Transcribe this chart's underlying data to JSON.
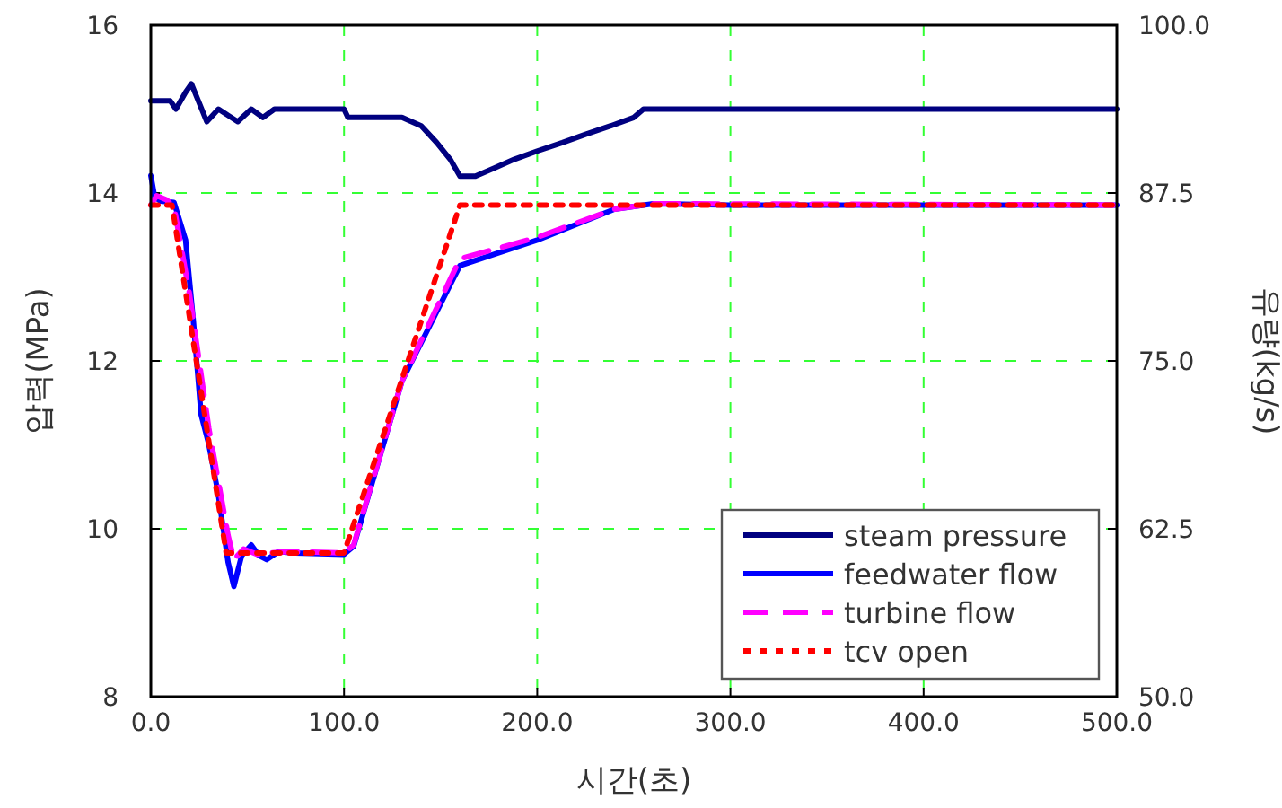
{
  "chart_data": {
    "type": "line",
    "xlabel": "시간(초)",
    "ylabel": "압력(MPa)",
    "y2label": "유량(kg/s)",
    "xlim": [
      0,
      500
    ],
    "xticks": [
      {
        "value": 0,
        "label": "0.0"
      },
      {
        "value": 100,
        "label": "100.0"
      },
      {
        "value": 200,
        "label": "200.0"
      },
      {
        "value": 300,
        "label": "300.0"
      },
      {
        "value": 400,
        "label": "400.0"
      },
      {
        "value": 500,
        "label": "500.0"
      }
    ],
    "ylim": [
      8,
      16
    ],
    "yticks": [
      8,
      10,
      12,
      14,
      16
    ],
    "y2lim": [
      50,
      100
    ],
    "y2ticks": [
      {
        "value": 50,
        "label": "50.0"
      },
      {
        "value": 62.5,
        "label": "62.5"
      },
      {
        "value": 75,
        "label": "75.0"
      },
      {
        "value": 87.5,
        "label": "87.5"
      },
      {
        "value": 100,
        "label": "100.0"
      }
    ],
    "grid": true,
    "legend": "bottom right",
    "series": [
      {
        "name": "steam pressure",
        "color": "#000080",
        "line_style": "solid",
        "x": [
          0,
          10,
          13,
          18,
          21,
          29,
          35,
          45,
          52,
          58,
          64,
          100,
          102,
          130,
          140,
          148,
          155,
          160,
          168,
          178,
          188,
          200,
          213,
          225,
          238,
          250,
          255,
          500
        ],
        "values": [
          15.1,
          15.1,
          15.0,
          15.2,
          15.3,
          14.85,
          15.0,
          14.85,
          15.0,
          14.9,
          15.0,
          15.0,
          14.9,
          14.9,
          14.8,
          14.6,
          14.4,
          14.2,
          14.2,
          14.3,
          14.4,
          14.5,
          14.6,
          14.7,
          14.8,
          14.9,
          15.0,
          15.0
        ]
      },
      {
        "name": "feedwater flow",
        "color": "#0000ff",
        "axis": "y2",
        "line_style": "solid",
        "x": [
          0,
          2,
          5,
          12,
          18,
          22,
          26,
          30,
          35,
          40,
          43,
          47,
          52,
          56,
          60,
          66,
          75,
          100,
          105,
          130,
          160,
          200,
          240,
          260,
          300,
          500
        ],
        "values": [
          88.8,
          87.2,
          86.9,
          86.8,
          84,
          78,
          71,
          68.8,
          65,
          60,
          58.2,
          60.5,
          61.3,
          60.5,
          60.2,
          60.8,
          60.7,
          60.6,
          61.2,
          73.5,
          82.1,
          84,
          86.3,
          86.7,
          86.6,
          86.6
        ]
      },
      {
        "name": "turbine flow",
        "color": "#ff00ff",
        "axis": "y2",
        "line_style": "dashed",
        "x": [
          0,
          3,
          8,
          12,
          20,
          30,
          40,
          43,
          48,
          55,
          70,
          100,
          105,
          130,
          160,
          200,
          240,
          260,
          500
        ],
        "values": [
          86.6,
          87.3,
          87,
          86.5,
          80,
          70,
          62,
          60.2,
          61,
          60.6,
          60.8,
          60.7,
          61.3,
          73.5,
          82.6,
          84.2,
          86.3,
          86.7,
          86.6
        ]
      },
      {
        "name": "tcv open",
        "color": "#ff0000",
        "axis": "y2",
        "line_style": "dotted",
        "x": [
          0,
          11,
          39,
          100,
          160,
          500
        ],
        "values": [
          86.6,
          86.6,
          60.7,
          60.7,
          86.6,
          86.6
        ]
      }
    ]
  }
}
